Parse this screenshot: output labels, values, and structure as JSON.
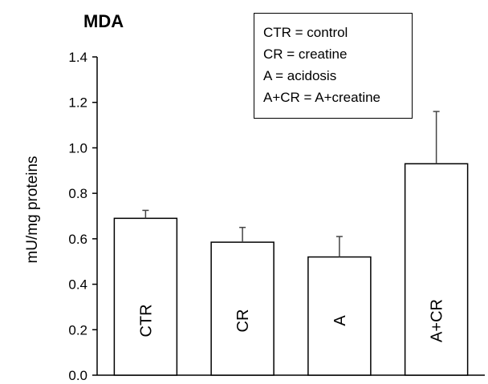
{
  "chart_data": {
    "type": "bar",
    "title": "MDA",
    "xlabel": "",
    "ylabel": "mU/mg proteins",
    "ylim": [
      0,
      1.4
    ],
    "yticks": [
      "0.0",
      "0.2",
      "0.4",
      "0.6",
      "0.8",
      "1.0",
      "1.2",
      "1.4"
    ],
    "categories": [
      "CTR",
      "CR",
      "A",
      "A+CR"
    ],
    "values": [
      0.69,
      0.585,
      0.52,
      0.93
    ],
    "errors": [
      0.035,
      0.065,
      0.09,
      0.23
    ],
    "legend": [
      "CTR = control",
      "CR = creatine",
      "A = acidosis",
      "A+CR = A+creatine"
    ],
    "legend_position": "top-right",
    "grid": false,
    "bar_color": "#ffffff",
    "edge_color": "#000000"
  }
}
